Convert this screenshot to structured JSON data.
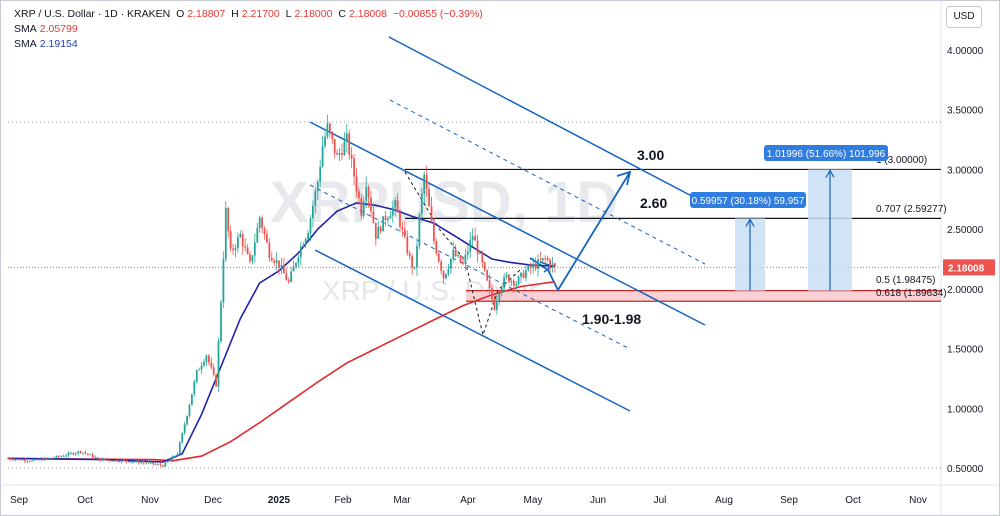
{
  "header": {
    "symbol": "XRP / U.S. Dollar · 1D · KRAKEN",
    "o_label": "O",
    "o_value": "2.18807",
    "h_label": "H",
    "h_value": "2.21700",
    "l_label": "L",
    "l_value": "2.18000",
    "c_label": "C",
    "c_value": "2.18008",
    "change": "−0.00855 (−0.39%)",
    "sma1_label": "SMA",
    "sma1_value": "2.05799",
    "sma2_label": "SMA",
    "sma2_value": "2.19154"
  },
  "currency_button": "USD",
  "watermark": {
    "ticker": "XRPUSD, 1D",
    "name": "XRP / U.S. Dollar"
  },
  "colors": {
    "up": "#26a69a",
    "down": "#ef5350",
    "sma_fast": "#1e22aa",
    "sma_slow": "#e0282e",
    "channel": "#1565c0",
    "zone": "#f8c9cc",
    "projection": "#c8dff5",
    "label_bg": "#2f7de1"
  },
  "chart_data": {
    "type": "candlestick",
    "x_axis_labels": [
      "Sep",
      "Oct",
      "Nov",
      "Dec",
      "2025",
      "Feb",
      "Mar",
      "Apr",
      "May",
      "Jun",
      "Jul",
      "Aug",
      "Sep",
      "Oct",
      "Nov"
    ],
    "y_ticks": [
      "0.50000",
      "1.00000",
      "1.50000",
      "2.00000",
      "2.50000",
      "3.00000",
      "3.50000",
      "4.00000"
    ],
    "ylim": [
      0.45,
      4.2
    ],
    "last_price": "2.18008",
    "price_path": [
      [
        0,
        0.58
      ],
      [
        10,
        0.56
      ],
      [
        20,
        0.59
      ],
      [
        30,
        0.64
      ],
      [
        38,
        0.57
      ],
      [
        48,
        0.56
      ],
      [
        58,
        0.54
      ],
      [
        64,
        0.52
      ],
      [
        70,
        0.62
      ],
      [
        74,
        0.95
      ],
      [
        78,
        1.3
      ],
      [
        82,
        1.45
      ],
      [
        86,
        1.2
      ],
      [
        88,
        1.9
      ],
      [
        90,
        2.65
      ],
      [
        92,
        2.3
      ],
      [
        96,
        2.45
      ],
      [
        100,
        2.2
      ],
      [
        104,
        2.6
      ],
      [
        108,
        2.3
      ],
      [
        112,
        2.2
      ],
      [
        116,
        2.05
      ],
      [
        120,
        2.3
      ],
      [
        124,
        2.5
      ],
      [
        128,
        2.9
      ],
      [
        130,
        3.2
      ],
      [
        132,
        3.35
      ],
      [
        136,
        3.1
      ],
      [
        140,
        3.25
      ],
      [
        142,
        3.05
      ],
      [
        146,
        2.65
      ],
      [
        148,
        2.9
      ],
      [
        152,
        2.45
      ],
      [
        156,
        2.6
      ],
      [
        160,
        2.7
      ],
      [
        164,
        2.4
      ],
      [
        166,
        2.25
      ],
      [
        168,
        2.15
      ],
      [
        170,
        2.6
      ],
      [
        172,
        2.95
      ],
      [
        176,
        2.4
      ],
      [
        180,
        2.1
      ],
      [
        184,
        2.3
      ],
      [
        188,
        2.2
      ],
      [
        192,
        2.45
      ],
      [
        196,
        2.2
      ],
      [
        198,
        2.05
      ],
      [
        201,
        1.85
      ],
      [
        203,
        2.0
      ],
      [
        206,
        2.1
      ],
      [
        210,
        2.05
      ],
      [
        214,
        2.15
      ],
      [
        218,
        2.2
      ],
      [
        222,
        2.25
      ],
      [
        226,
        2.18
      ]
    ],
    "sma_fast_path": [
      [
        0,
        0.58
      ],
      [
        40,
        0.57
      ],
      [
        64,
        0.55
      ],
      [
        72,
        0.62
      ],
      [
        80,
        0.95
      ],
      [
        88,
        1.35
      ],
      [
        96,
        1.75
      ],
      [
        104,
        2.05
      ],
      [
        112,
        2.15
      ],
      [
        120,
        2.3
      ],
      [
        128,
        2.5
      ],
      [
        136,
        2.65
      ],
      [
        144,
        2.72
      ],
      [
        152,
        2.7
      ],
      [
        160,
        2.66
      ],
      [
        168,
        2.6
      ],
      [
        176,
        2.55
      ],
      [
        184,
        2.45
      ],
      [
        192,
        2.35
      ],
      [
        200,
        2.25
      ],
      [
        208,
        2.22
      ],
      [
        216,
        2.2
      ],
      [
        226,
        2.19
      ]
    ],
    "sma_slow_path": [
      [
        0,
        0.58
      ],
      [
        60,
        0.57
      ],
      [
        68,
        0.56
      ],
      [
        80,
        0.6
      ],
      [
        92,
        0.72
      ],
      [
        104,
        0.88
      ],
      [
        116,
        1.05
      ],
      [
        128,
        1.22
      ],
      [
        140,
        1.38
      ],
      [
        152,
        1.5
      ],
      [
        164,
        1.62
      ],
      [
        176,
        1.74
      ],
      [
        188,
        1.86
      ],
      [
        200,
        1.95
      ],
      [
        212,
        2.02
      ],
      [
        226,
        2.06
      ]
    ],
    "annotations": {
      "level_300": "3.00",
      "level_260": "2.60",
      "zone_label": "1.90-1.98",
      "fib_0707": "0.707 (2.59277)",
      "fib_1": "1 (3.00000)",
      "fib_05": "0.5 (1.98475)",
      "fib_0618": "0.618 (1.89634)",
      "target1": "0.59957 (30.18%) 59,957",
      "target2": "1.01996 (51.66%) 101,996"
    }
  }
}
